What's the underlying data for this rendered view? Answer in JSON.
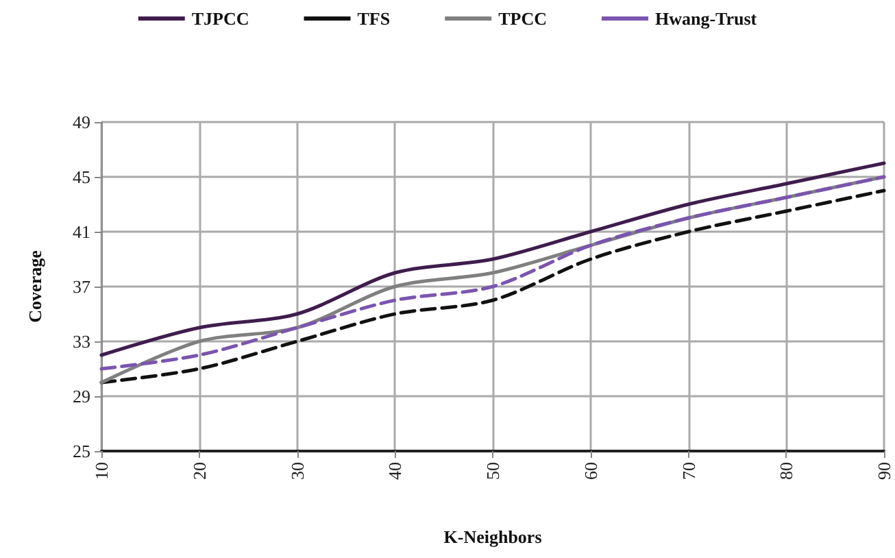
{
  "chart_data": {
    "type": "line",
    "xlabel": "K-Neighbors",
    "ylabel": "Coverage",
    "categories": [
      "10",
      "20",
      "30",
      "40",
      "50",
      "60",
      "70",
      "80",
      "90"
    ],
    "series": [
      {
        "name": "TJPCC",
        "color": "#3f1d4d",
        "values": [
          32,
          34,
          35,
          38,
          39,
          41,
          43,
          44.5,
          46
        ],
        "line_style": "solid"
      },
      {
        "name": "TFS",
        "color": "#111111",
        "values": [
          30,
          31,
          33,
          35,
          36,
          39,
          41,
          42.5,
          44
        ],
        "line_style": "dashed"
      },
      {
        "name": "TPCC",
        "color": "#808080",
        "values": [
          30,
          33,
          34,
          37,
          38,
          40,
          42,
          43.5,
          45
        ],
        "line_style": "solid"
      },
      {
        "name": "Hwang-Trust",
        "color": "#7b55b0",
        "values": [
          31,
          32,
          34,
          36,
          37,
          40,
          42,
          43.5,
          45
        ],
        "line_style": "dashed"
      }
    ],
    "ylim": [
      25,
      49
    ],
    "yticks": [
      25,
      29,
      33,
      37,
      41,
      45,
      49
    ],
    "grid": true,
    "legend": "top",
    "marker": "none"
  }
}
